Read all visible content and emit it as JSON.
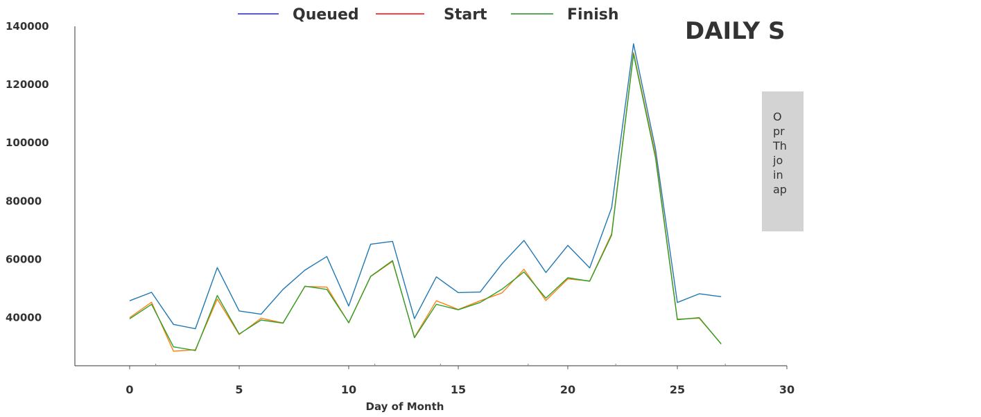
{
  "chart_data": {
    "type": "line",
    "title": "DAILY S",
    "xlabel": "Day of Month",
    "ylabel": "",
    "xlim": [
      -2.5,
      30
    ],
    "ylim": [
      23500,
      140000
    ],
    "x_ticks": [
      0,
      5,
      10,
      15,
      20,
      25,
      30
    ],
    "y_ticks": [
      40000,
      60000,
      80000,
      100000,
      120000,
      140000
    ],
    "legend": {
      "placement": "top-center"
    },
    "grid": false,
    "x": [
      0,
      1,
      2,
      3,
      4,
      5,
      6,
      7,
      8,
      9,
      10,
      11,
      12,
      13,
      14,
      15,
      16,
      17,
      18,
      19,
      20,
      21,
      22,
      23,
      24,
      25,
      26,
      27
    ],
    "series": [
      {
        "name": "Queued",
        "legend_color": "#1a1aff",
        "color": "#1f77b4",
        "values": [
          45800,
          48700,
          37700,
          36200,
          57200,
          42300,
          41200,
          49700,
          56300,
          61000,
          44000,
          65200,
          66200,
          39700,
          54000,
          48600,
          48800,
          58500,
          66500,
          55500,
          64800,
          57100,
          77700,
          134000,
          98000,
          45200,
          48200,
          47200
        ]
      },
      {
        "name": "Start",
        "legend_color": "#ff0000",
        "color": "#ff7f0e",
        "values": [
          40000,
          45300,
          28500,
          29000,
          46400,
          34200,
          39800,
          38200,
          50700,
          50500,
          38200,
          54100,
          59300,
          33300,
          45800,
          42800,
          45800,
          48500,
          56600,
          45900,
          53300,
          52600,
          68800,
          131000,
          96000,
          39500,
          39800,
          31000
        ]
      },
      {
        "name": "Finish",
        "legend_color": "#228b22",
        "color": "#2ca02c",
        "values": [
          39600,
          44600,
          30000,
          28700,
          47600,
          34400,
          39200,
          38100,
          50800,
          49700,
          38300,
          54200,
          59600,
          33100,
          44600,
          42700,
          45200,
          49800,
          55700,
          46700,
          53700,
          52500,
          68300,
          130500,
          95000,
          39300,
          40000,
          31000
        ]
      }
    ],
    "annotation": "O\npr\nTh\njo\nin\nap"
  }
}
